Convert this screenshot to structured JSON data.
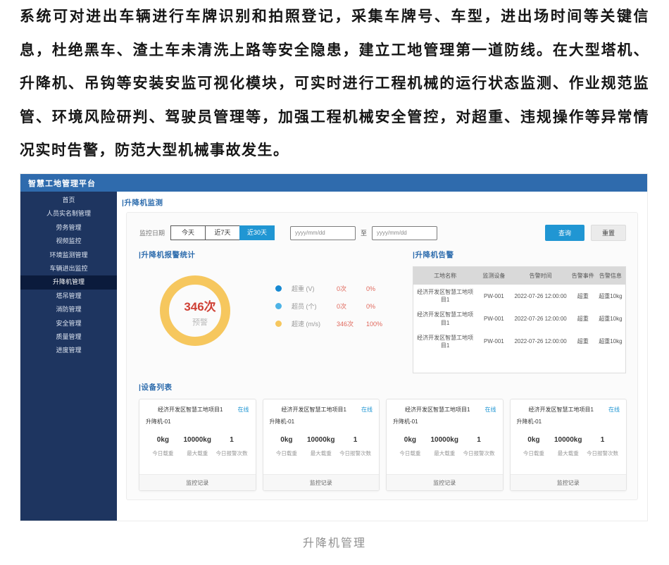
{
  "intro_paragraph": "系统可对进出车辆进行车牌识别和拍照登记，采集车牌号、车型，进出场时间等关键信息，杜绝黑车、渣土车未清洗上路等安全隐患，建立工地管理第一道防线。在大型塔机、升降机、吊钩等安装安监可视化模块，可实时进行工程机械的运行状态监测、作业规范监管、环境风险研判、驾驶员管理等，加强工程机械安全管控，对超重、违规操作等异常情况实时告警，防范大型机械事故发生。",
  "caption": "升降机管理",
  "app": {
    "title": "智慧工地管理平台",
    "sidebar": {
      "items": [
        {
          "label": "首页"
        },
        {
          "label": "人员实名制管理"
        },
        {
          "label": "劳务管理"
        },
        {
          "label": "视频监控"
        },
        {
          "label": "环境监测管理"
        },
        {
          "label": "车辆进出监控"
        },
        {
          "label": "升降机管理",
          "active": true
        },
        {
          "label": "塔吊管理"
        },
        {
          "label": "消防管理"
        },
        {
          "label": "安全管理"
        },
        {
          "label": "质量管理"
        },
        {
          "label": "进度管理"
        }
      ]
    },
    "page_heading": "|升降机监测",
    "filter": {
      "date_label": "监控日期",
      "ranges": [
        "今天",
        "近7天",
        "近30天"
      ],
      "active_range": "近30天",
      "date_placeholder": "yyyy/mm/dd",
      "to_label": "至",
      "query_label": "查询",
      "reset_label": "重置"
    },
    "alarm_stats_heading": "|升降机报警统计",
    "alarm_table": {
      "heading": "|升降机告警",
      "columns": [
        "工地名称",
        "监测设备",
        "告警时间",
        "告警事件",
        "告警信息"
      ],
      "rows": [
        [
          "经济开发区智慧工地项目1",
          "PW-001",
          "2022-07-26 12:00:00",
          "超重",
          "超重10kg"
        ],
        [
          "经济开发区智慧工地项目1",
          "PW-001",
          "2022-07-26 12:00:00",
          "超重",
          "超重10kg"
        ],
        [
          "经济开发区智慧工地项目1",
          "PW-001",
          "2022-07-26 12:00:00",
          "超重",
          "超重10kg"
        ]
      ]
    },
    "device_list": {
      "heading": "|设备列表",
      "cards": [
        {
          "project": "经济开发区智慧工地项目1",
          "status": "在线",
          "device": "升降机-01",
          "stats": [
            {
              "value": "0kg",
              "label": "今日载重"
            },
            {
              "value": "10000kg",
              "label": "最大载重"
            },
            {
              "value": "1",
              "label": "今日报警次数"
            }
          ],
          "action": "监控记录"
        },
        {
          "project": "经济开发区智慧工地项目1",
          "status": "在线",
          "device": "升降机-01",
          "stats": [
            {
              "value": "0kg",
              "label": "今日载重"
            },
            {
              "value": "10000kg",
              "label": "最大载重"
            },
            {
              "value": "1",
              "label": "今日报警次数"
            }
          ],
          "action": "监控记录"
        },
        {
          "project": "经济开发区智慧工地项目1",
          "status": "在线",
          "device": "升降机-01",
          "stats": [
            {
              "value": "0kg",
              "label": "今日载重"
            },
            {
              "value": "10000kg",
              "label": "最大载重"
            },
            {
              "value": "1",
              "label": "今日报警次数"
            }
          ],
          "action": "监控记录"
        },
        {
          "project": "经济开发区智慧工地项目1",
          "status": "在线",
          "device": "升降机-01",
          "stats": [
            {
              "value": "0kg",
              "label": "今日载重"
            },
            {
              "value": "10000kg",
              "label": "最大载重"
            },
            {
              "value": "1",
              "label": "今日报警次数"
            }
          ],
          "action": "监控记录"
        }
      ]
    }
  },
  "chart_data": {
    "type": "pie",
    "title": "升降机报警统计",
    "categories": [
      "超重 (V)",
      "超员 (个)",
      "超速 (m/s)"
    ],
    "values": [
      0,
      0,
      346
    ],
    "counts": [
      "0次",
      "0次",
      "346次"
    ],
    "percentages": [
      "0%",
      "0%",
      "100%"
    ],
    "colors": [
      "#1789d2",
      "#4db3e6",
      "#f6c75e"
    ],
    "center": {
      "value": "346次",
      "label": "预警"
    },
    "legend_position": "right"
  },
  "colors": {
    "header_blue": "#2f6bad",
    "sidebar_navy": "#1e3560",
    "sidebar_active": "#0b1b3c",
    "accent_blue": "#2d6cad",
    "primary_button_blue": "#2096d3",
    "alert_red": "#cf4136",
    "legend_value_red": "#e0685c",
    "donut_yellow": "#f6c75e",
    "table_header_gray": "#d9d9d9"
  }
}
